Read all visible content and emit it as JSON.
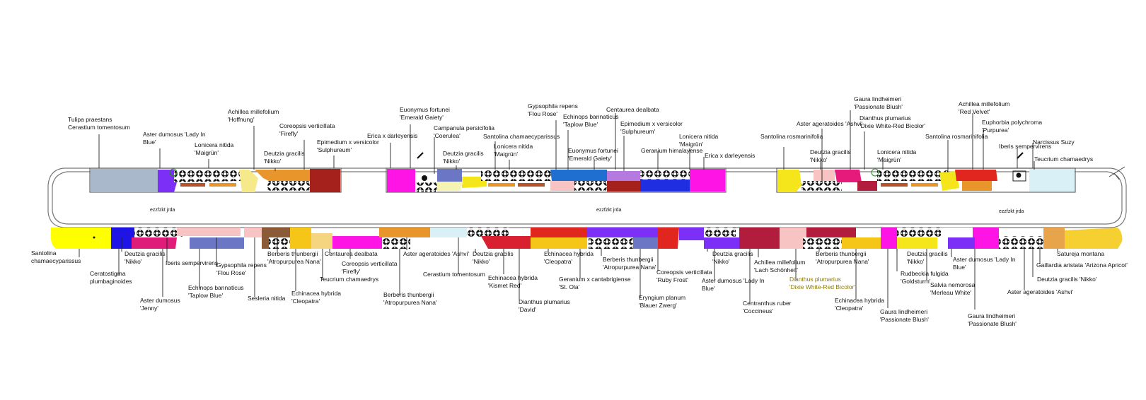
{
  "plan": {
    "bed_area_labels": [
      "ezzfzkt jrda",
      "ezzfzkt jrda",
      "ezzfzkt jrda"
    ]
  },
  "colors": {
    "magenta": "#ff14e6",
    "purple": "#7b2ff7",
    "blue": "#1f4ee8",
    "yellow": "#f5e61b",
    "red": "#e0261f",
    "dark_red": "#a5221c",
    "orange": "#e8962c",
    "pink": "#ff4fa0",
    "grey_blue": "#a9b9cb",
    "light_cyan": "#d9f0f7",
    "light_pink": "#f7c3c3",
    "slate": "#6b76c4",
    "brown": "#8b5a36",
    "crimson": "#c81a4a",
    "wine": "#b21c3d",
    "rust": "#b5532a"
  },
  "labels_top": [
    {
      "id": "t1",
      "lines": [
        "Tulipa praestans",
        "Cerastium tomentosum"
      ]
    },
    {
      "id": "t2",
      "lines": [
        "Aster dumosus 'Lady In",
        "Blue'"
      ]
    },
    {
      "id": "t3",
      "lines": [
        "Achillea millefolium",
        "'Hoffnung'"
      ]
    },
    {
      "id": "t4",
      "lines": [
        "Lonicera nitida",
        "'Maigrün'"
      ]
    },
    {
      "id": "t5",
      "lines": [
        "Coreopsis verticillata",
        "'Firefly'"
      ]
    },
    {
      "id": "t6",
      "lines": [
        "Deutzia gracilis",
        "'Nikko'"
      ]
    },
    {
      "id": "t7",
      "lines": [
        "Epimedium x versicolor",
        "'Sulphureum'"
      ]
    },
    {
      "id": "t8",
      "lines": [
        "Erica x darleyensis"
      ]
    },
    {
      "id": "t9",
      "lines": [
        "Euonymus fortunei",
        "'Emerald Gaiety'"
      ]
    },
    {
      "id": "t10",
      "lines": [
        "Campanula persicifolia",
        "'Coerulea'"
      ]
    },
    {
      "id": "t11",
      "lines": [
        "Deutzia gracilis",
        "'Nikko'"
      ]
    },
    {
      "id": "t12",
      "lines": [
        "Santolina chamaecyparissus"
      ]
    },
    {
      "id": "t13",
      "lines": [
        "Lonicera nitida",
        "'Maigrün'"
      ]
    },
    {
      "id": "t14",
      "lines": [
        "Gypsophila repens",
        "'Flou Rose'"
      ]
    },
    {
      "id": "t15",
      "lines": [
        "Echinops bannaticus",
        "'Taplow Blue'"
      ]
    },
    {
      "id": "t16",
      "lines": [
        "Euonymus fortunei",
        "'Emerald Gaiety'"
      ]
    },
    {
      "id": "t17",
      "lines": [
        "Centaurea dealbata"
      ]
    },
    {
      "id": "t18",
      "lines": [
        "Epimedium x versicolor",
        "'Sulphureum'"
      ]
    },
    {
      "id": "t19",
      "lines": [
        "Geranium himalayense"
      ]
    },
    {
      "id": "t20",
      "lines": [
        "Lonicera nitida",
        "'Maigrün'"
      ]
    },
    {
      "id": "t21",
      "lines": [
        "Erica x darleyensis"
      ]
    },
    {
      "id": "t22",
      "lines": [
        "Gaura lindheimeri",
        "'Passionate Blush'"
      ]
    },
    {
      "id": "t23",
      "lines": [
        "Aster ageratoides 'Ashvi'"
      ]
    },
    {
      "id": "t24",
      "lines": [
        "Dianthus plumarius",
        "'Dixie White-Red Bicolor'"
      ]
    },
    {
      "id": "t25",
      "lines": [
        "Santolina rosmarinifolia"
      ]
    },
    {
      "id": "t26",
      "lines": [
        "Deutzia gracilis",
        "'Nikko'"
      ]
    },
    {
      "id": "t27",
      "lines": [
        "Lonicera nitida",
        "'Maigrün'"
      ]
    },
    {
      "id": "t28",
      "lines": [
        "Achillea millefolium",
        "'Red Velvet'"
      ]
    },
    {
      "id": "t29",
      "lines": [
        "Euphorbia polychroma",
        "'Purpurea'"
      ]
    },
    {
      "id": "t30",
      "lines": [
        "Santolina rosmarinifolia"
      ]
    },
    {
      "id": "t31",
      "lines": [
        "Iberis sempervirens"
      ]
    },
    {
      "id": "t32",
      "lines": [
        "Narcissus Suzy"
      ]
    },
    {
      "id": "t33",
      "lines": [
        "Teucrium chamaedrys"
      ]
    }
  ],
  "labels_bottom": [
    {
      "id": "b1",
      "lines": [
        "Santolina",
        "chamaecyparissus"
      ]
    },
    {
      "id": "b2",
      "lines": [
        "Deutzia gracilis",
        "'Nikko'"
      ]
    },
    {
      "id": "b3",
      "lines": [
        "Ceratostigma",
        "plumbaginoides"
      ]
    },
    {
      "id": "b4",
      "lines": [
        "Iberis sempervirens"
      ]
    },
    {
      "id": "b5",
      "lines": [
        "Aster dumosus",
        "'Jenny'"
      ]
    },
    {
      "id": "b6",
      "lines": [
        "Echinops bannaticus",
        "'Taplow Blue'"
      ]
    },
    {
      "id": "b7",
      "lines": [
        "Gypsophila repens",
        "'Flou Rose'"
      ]
    },
    {
      "id": "b8",
      "lines": [
        "Sesleria nitida"
      ]
    },
    {
      "id": "b9",
      "lines": [
        "Berberis thunbergii",
        "'Atropurpurea Nana'"
      ]
    },
    {
      "id": "b10",
      "lines": [
        "Echinacea hybrida",
        "'Cleopatra'"
      ]
    },
    {
      "id": "b11",
      "lines": [
        "Centaurea dealbata"
      ]
    },
    {
      "id": "b12",
      "lines": [
        "Teucrium chamaedrys"
      ]
    },
    {
      "id": "b13",
      "lines": [
        "Coreopsis verticillata",
        "'Firefly'"
      ]
    },
    {
      "id": "b14",
      "lines": [
        "Berberis thunbergii",
        "'Atropurpurea Nana'"
      ]
    },
    {
      "id": "b15",
      "lines": [
        "Aster ageratoides 'Ashvi'"
      ]
    },
    {
      "id": "b16",
      "lines": [
        "Cerastium tomentosum"
      ]
    },
    {
      "id": "b17",
      "lines": [
        "Deutzia gracilis",
        "'Nikko'"
      ]
    },
    {
      "id": "b18",
      "lines": [
        "Echinacea hybrida",
        "'Kismet Red'"
      ]
    },
    {
      "id": "b19",
      "lines": [
        "Dianthus plumarius",
        "'David'"
      ]
    },
    {
      "id": "b20",
      "lines": [
        "Echinacea hybrida",
        "'Cleopatra'"
      ]
    },
    {
      "id": "b21",
      "lines": [
        "Geranium x cantabrigiense",
        "'St. Ola'"
      ]
    },
    {
      "id": "b22",
      "lines": [
        "Berberis thunbergii",
        "'Atropurpurea Nana'"
      ]
    },
    {
      "id": "b23",
      "lines": [
        "Eryngium planum",
        "'Blauer Zwerg'"
      ]
    },
    {
      "id": "b24",
      "lines": [
        "Coreopsis verticillata",
        "'Ruby Frost'"
      ]
    },
    {
      "id": "b25",
      "lines": [
        "Deutzia gracilis",
        "'Nikko'"
      ]
    },
    {
      "id": "b26",
      "lines": [
        "Aster dumosus 'Lady In",
        "Blue'"
      ]
    },
    {
      "id": "b27",
      "lines": [
        "Achillea millefolium",
        "'Lach Schönheit'"
      ]
    },
    {
      "id": "b28",
      "lines": [
        "Centranthus ruber",
        "'Coccineus'"
      ]
    },
    {
      "id": "b29",
      "lines": [
        "Dianthus plumarius",
        "'Dixie White-Red Bicolor'"
      ]
    },
    {
      "id": "b30",
      "lines": [
        "Berberis thunbergii",
        "'Atropurpurea Nana'"
      ]
    },
    {
      "id": "b31",
      "lines": [
        "Echinacea hybrida",
        "'Cleopatra'"
      ]
    },
    {
      "id": "b32",
      "lines": [
        "Deutzia gracilis",
        "'Nikko'"
      ]
    },
    {
      "id": "b33",
      "lines": [
        "Rudbeckia fulgida",
        "'Goldsturm'"
      ]
    },
    {
      "id": "b34",
      "lines": [
        "Gaura lindheimeri",
        "'Passionate Blush'"
      ]
    },
    {
      "id": "b35",
      "lines": [
        "Salvia nemorosa",
        "'Merleau White'"
      ]
    },
    {
      "id": "b36",
      "lines": [
        "Aster dumosus 'Lady In",
        "Blue'"
      ]
    },
    {
      "id": "b37",
      "lines": [
        "Gaura lindheimeri",
        "'Passionate Blush'"
      ]
    },
    {
      "id": "b38",
      "lines": [
        "Aster ageratoides 'Ashvi'"
      ]
    },
    {
      "id": "b39",
      "lines": [
        "Deutzia gracilis 'Nikko'"
      ]
    },
    {
      "id": "b40",
      "lines": [
        "Gaillardia aristata 'Arizona Apricot'"
      ]
    },
    {
      "id": "b41",
      "lines": [
        "Satureja montana"
      ]
    }
  ]
}
